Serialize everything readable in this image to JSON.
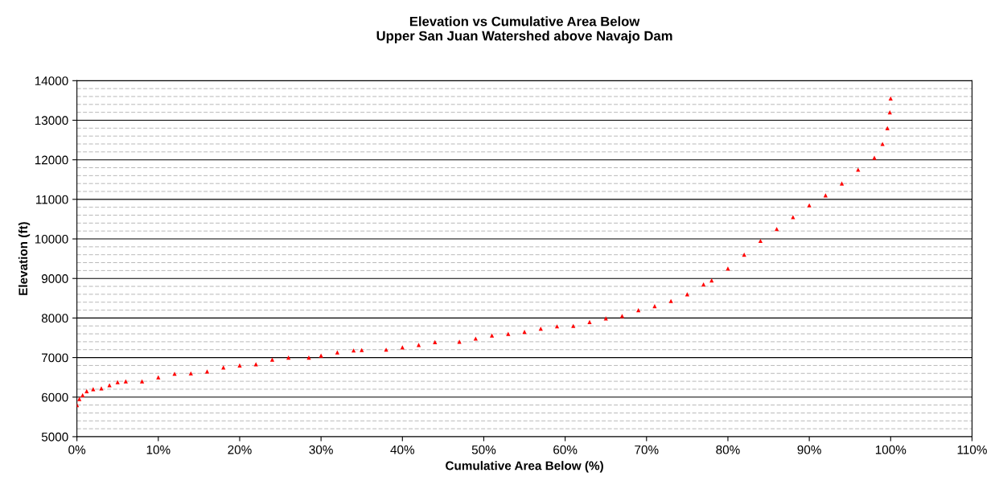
{
  "chart_data": {
    "type": "scatter",
    "title": "Elevation vs Cumulative Area Below\nUpper San Juan Watershed above Navajo Dam",
    "xlabel": "Cumulative Area Below (%)",
    "ylabel": "Elevation (ft)",
    "series": [
      {
        "color": "#ff0000",
        "x": [
          0,
          0.3,
          0.7,
          1.2,
          2,
          3,
          4,
          5,
          6,
          8,
          10,
          12,
          14,
          16,
          18,
          20,
          22,
          24,
          26,
          28.5,
          30,
          32,
          34,
          35,
          38,
          40,
          42,
          44,
          47,
          49,
          51,
          53,
          55,
          57,
          59,
          61,
          63,
          65,
          67,
          69,
          71,
          73,
          75,
          77,
          78,
          80,
          82,
          84,
          86,
          88,
          90,
          92,
          94,
          96,
          98,
          99,
          99.6,
          99.9,
          100
        ],
        "values": [
          5800,
          5950,
          6050,
          6150,
          6200,
          6220,
          6300,
          6380,
          6400,
          6400,
          6500,
          6590,
          6600,
          6650,
          6750,
          6800,
          6830,
          6950,
          7000,
          7000,
          7050,
          7130,
          7180,
          7190,
          7200,
          7260,
          7320,
          7390,
          7400,
          7480,
          7560,
          7600,
          7650,
          7730,
          7790,
          7800,
          7900,
          7990,
          8050,
          8200,
          8300,
          8430,
          8600,
          8850,
          8950,
          9250,
          9600,
          9950,
          10250,
          10550,
          10850,
          11100,
          11400,
          11750,
          12050,
          12400,
          12800,
          13200,
          13550
        ]
      }
    ],
    "marker": "triangle",
    "xlim": [
      0,
      110
    ],
    "ylim": [
      5000,
      14000
    ],
    "xticks": [
      {
        "value": 0,
        "label": "0%"
      },
      {
        "value": 10,
        "label": "10%"
      },
      {
        "value": 20,
        "label": "20%"
      },
      {
        "value": 30,
        "label": "30%"
      },
      {
        "value": 40,
        "label": "40%"
      },
      {
        "value": 50,
        "label": "50%"
      },
      {
        "value": 60,
        "label": "60%"
      },
      {
        "value": 70,
        "label": "70%"
      },
      {
        "value": 80,
        "label": "80%"
      },
      {
        "value": 90,
        "label": "90%"
      },
      {
        "value": 100,
        "label": "100%"
      },
      {
        "value": 110,
        "label": "110%"
      }
    ],
    "yticks": [
      5000,
      6000,
      7000,
      8000,
      9000,
      10000,
      11000,
      12000,
      13000,
      14000
    ],
    "grid": "y"
  }
}
